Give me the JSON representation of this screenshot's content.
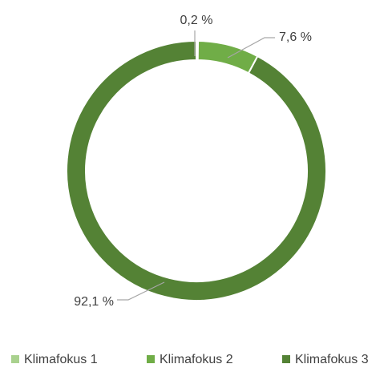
{
  "chart_data": {
    "type": "donut",
    "categories": [
      "Klimafokus 1",
      "Klimafokus 2",
      "Klimafokus 3"
    ],
    "values": [
      0.2,
      7.6,
      92.1
    ],
    "value_labels": [
      "0,2 %",
      "7,6 %",
      "92,1 %"
    ],
    "colors": [
      "#a9d18e",
      "#70ad47",
      "#548235"
    ],
    "legend": "bottom"
  }
}
